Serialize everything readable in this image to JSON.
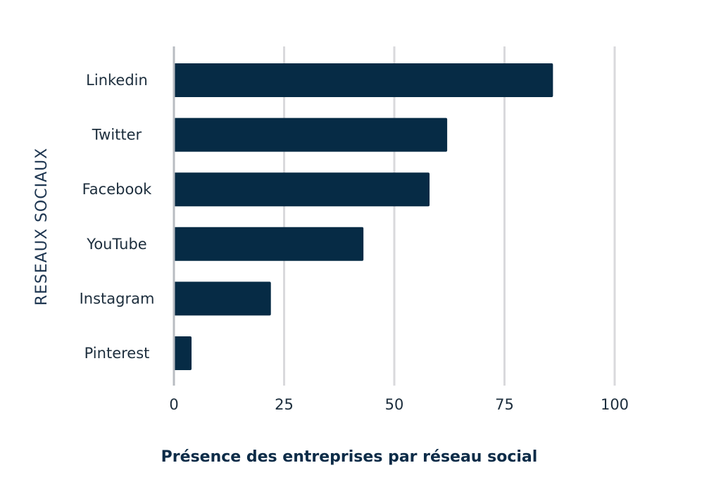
{
  "chart_data": {
    "type": "bar",
    "orientation": "horizontal",
    "categories": [
      "Linkedin",
      "Twitter",
      "Facebook",
      "YouTube",
      "Instagram",
      "Pinterest"
    ],
    "values": [
      86,
      62,
      58,
      43,
      22,
      4
    ],
    "xlabel": "Présence des entreprises par réseau social",
    "ylabel": "RESEAUX SOCIAUX",
    "xlim": [
      0,
      100
    ],
    "xticks": [
      0,
      25,
      50,
      75,
      100
    ],
    "grid": true,
    "bar_color": "#062b45"
  }
}
